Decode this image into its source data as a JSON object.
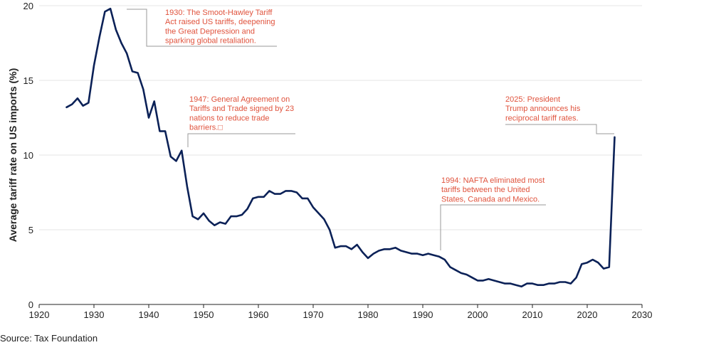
{
  "chart_data": {
    "type": "line",
    "title": "",
    "xlabel": "",
    "ylabel": "Average tariff rate on US imports (%)",
    "xlim": [
      1920,
      2030
    ],
    "ylim": [
      0,
      20
    ],
    "x_ticks": [
      1920,
      1930,
      1940,
      1950,
      1960,
      1970,
      1980,
      1990,
      2000,
      2010,
      2020,
      2030
    ],
    "y_ticks": [
      0,
      5,
      10,
      15,
      20
    ],
    "grid": "horizontal",
    "line_color": "#0b2157",
    "annotation_color": "#e0533d",
    "series": [
      {
        "name": "Average tariff rate",
        "x": [
          1925,
          1926,
          1927,
          1928,
          1929,
          1930,
          1931,
          1932,
          1933,
          1934,
          1935,
          1936,
          1937,
          1938,
          1939,
          1940,
          1941,
          1942,
          1943,
          1944,
          1945,
          1946,
          1947,
          1948,
          1949,
          1950,
          1951,
          1952,
          1953,
          1954,
          1955,
          1956,
          1957,
          1958,
          1959,
          1960,
          1961,
          1962,
          1963,
          1964,
          1965,
          1966,
          1967,
          1968,
          1969,
          1970,
          1971,
          1972,
          1973,
          1974,
          1975,
          1976,
          1977,
          1978,
          1979,
          1980,
          1981,
          1982,
          1983,
          1984,
          1985,
          1986,
          1987,
          1988,
          1989,
          1990,
          1991,
          1992,
          1993,
          1994,
          1995,
          1996,
          1997,
          1998,
          1999,
          2000,
          2001,
          2002,
          2003,
          2004,
          2005,
          2006,
          2007,
          2008,
          2009,
          2010,
          2011,
          2012,
          2013,
          2014,
          2015,
          2016,
          2017,
          2018,
          2019,
          2020,
          2021,
          2022,
          2023,
          2024,
          2025
        ],
        "values": [
          13.2,
          13.4,
          13.8,
          13.3,
          13.5,
          16.0,
          17.9,
          19.6,
          19.8,
          18.4,
          17.5,
          16.8,
          15.6,
          15.5,
          14.4,
          12.5,
          13.6,
          11.6,
          11.6,
          9.9,
          9.6,
          10.3,
          7.9,
          5.9,
          5.7,
          6.1,
          5.6,
          5.3,
          5.5,
          5.4,
          5.9,
          5.9,
          6.0,
          6.4,
          7.1,
          7.2,
          7.2,
          7.6,
          7.4,
          7.4,
          7.6,
          7.6,
          7.5,
          7.1,
          7.1,
          6.5,
          6.1,
          5.7,
          5.0,
          3.8,
          3.9,
          3.9,
          3.7,
          4.0,
          3.5,
          3.1,
          3.4,
          3.6,
          3.7,
          3.7,
          3.8,
          3.6,
          3.5,
          3.4,
          3.4,
          3.3,
          3.4,
          3.3,
          3.2,
          3.0,
          2.5,
          2.3,
          2.1,
          2.0,
          1.8,
          1.6,
          1.6,
          1.7,
          1.6,
          1.5,
          1.4,
          1.4,
          1.3,
          1.2,
          1.4,
          1.4,
          1.3,
          1.3,
          1.4,
          1.4,
          1.5,
          1.5,
          1.4,
          1.8,
          2.7,
          2.8,
          3.0,
          2.8,
          2.4,
          2.5,
          11.2
        ]
      }
    ],
    "annotations": [
      {
        "lines": [
          "1930: The Smoot-Hawley Tariff",
          "Act raised US tariffs, deepening",
          "the Great Depression and",
          "sparking global retaliation."
        ],
        "x": 1932.5,
        "y": 19.8
      },
      {
        "lines": [
          "1947: General Agreement on",
          "Tariffs and Trade signed by 23",
          "nations to reduce trade",
          "barriers.□"
        ],
        "x": 1946.5,
        "y": 10.4
      },
      {
        "lines": [
          "1994: NAFTA eliminated most",
          "tariffs between the United",
          "States, Canada and Mexico."
        ],
        "x": 1993,
        "y": 3.6
      },
      {
        "lines": [
          "2025: President",
          "Trump announces his",
          "reciprocal tariff rates."
        ],
        "x": 2025,
        "y": 11.4
      }
    ]
  },
  "source": "Source: Tax Foundation"
}
